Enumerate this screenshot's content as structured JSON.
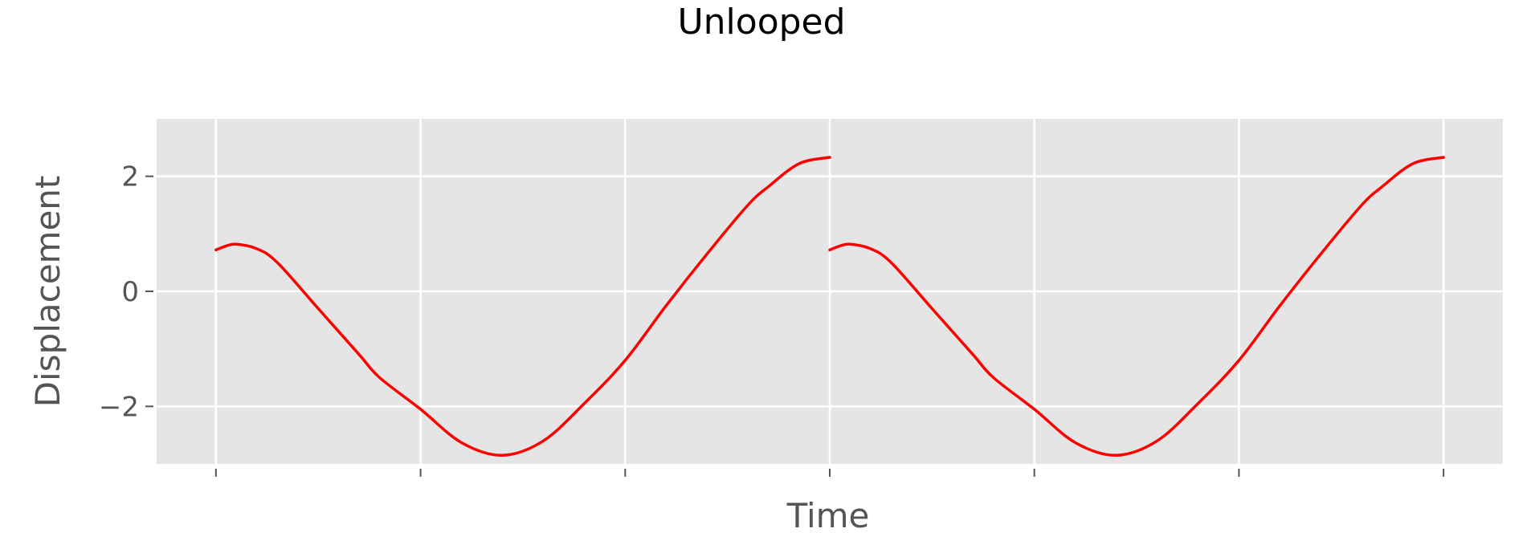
{
  "chart_data": {
    "type": "line",
    "title": "Unlooped",
    "xlabel": "Time",
    "ylabel": "Displacement",
    "xlim": [
      -0.29,
      6.29
    ],
    "ylim": [
      -3.0,
      3.0
    ],
    "x_ticks": [
      0,
      1,
      2,
      3,
      4,
      5,
      6
    ],
    "x_tick_labels": [
      "",
      "",
      "",
      "",
      "",
      "",
      ""
    ],
    "y_ticks": [
      -2,
      0,
      2
    ],
    "y_tick_labels": [
      "−2",
      "0",
      "2"
    ],
    "grid": true,
    "background": "#e5e5e5",
    "series": [
      {
        "color": "#ff0000",
        "x": [
          0,
          0.05,
          0.1,
          0.2,
          0.3,
          0.5,
          0.7,
          0.8,
          1.0,
          1.2,
          1.4,
          1.6,
          1.8,
          2.0,
          2.2,
          2.4,
          2.6,
          2.7,
          2.85,
          3.0
        ],
        "y": [
          0.72,
          0.79,
          0.82,
          0.74,
          0.5,
          -0.3,
          -1.1,
          -1.5,
          -2.05,
          -2.63,
          -2.85,
          -2.6,
          -1.95,
          -1.2,
          -0.25,
          0.65,
          1.5,
          1.82,
          2.22,
          2.33
        ]
      },
      {
        "color": "#ff0000",
        "x": [
          3.0,
          3.05,
          3.1,
          3.2,
          3.3,
          3.5,
          3.7,
          3.8,
          4.0,
          4.2,
          4.4,
          4.6,
          4.8,
          5.0,
          5.2,
          5.4,
          5.6,
          5.7,
          5.85,
          6.0
        ],
        "y": [
          0.72,
          0.79,
          0.82,
          0.74,
          0.5,
          -0.3,
          -1.1,
          -1.5,
          -2.05,
          -2.63,
          -2.85,
          -2.6,
          -1.95,
          -1.2,
          -0.25,
          0.65,
          1.5,
          1.82,
          2.22,
          2.33
        ]
      }
    ]
  }
}
